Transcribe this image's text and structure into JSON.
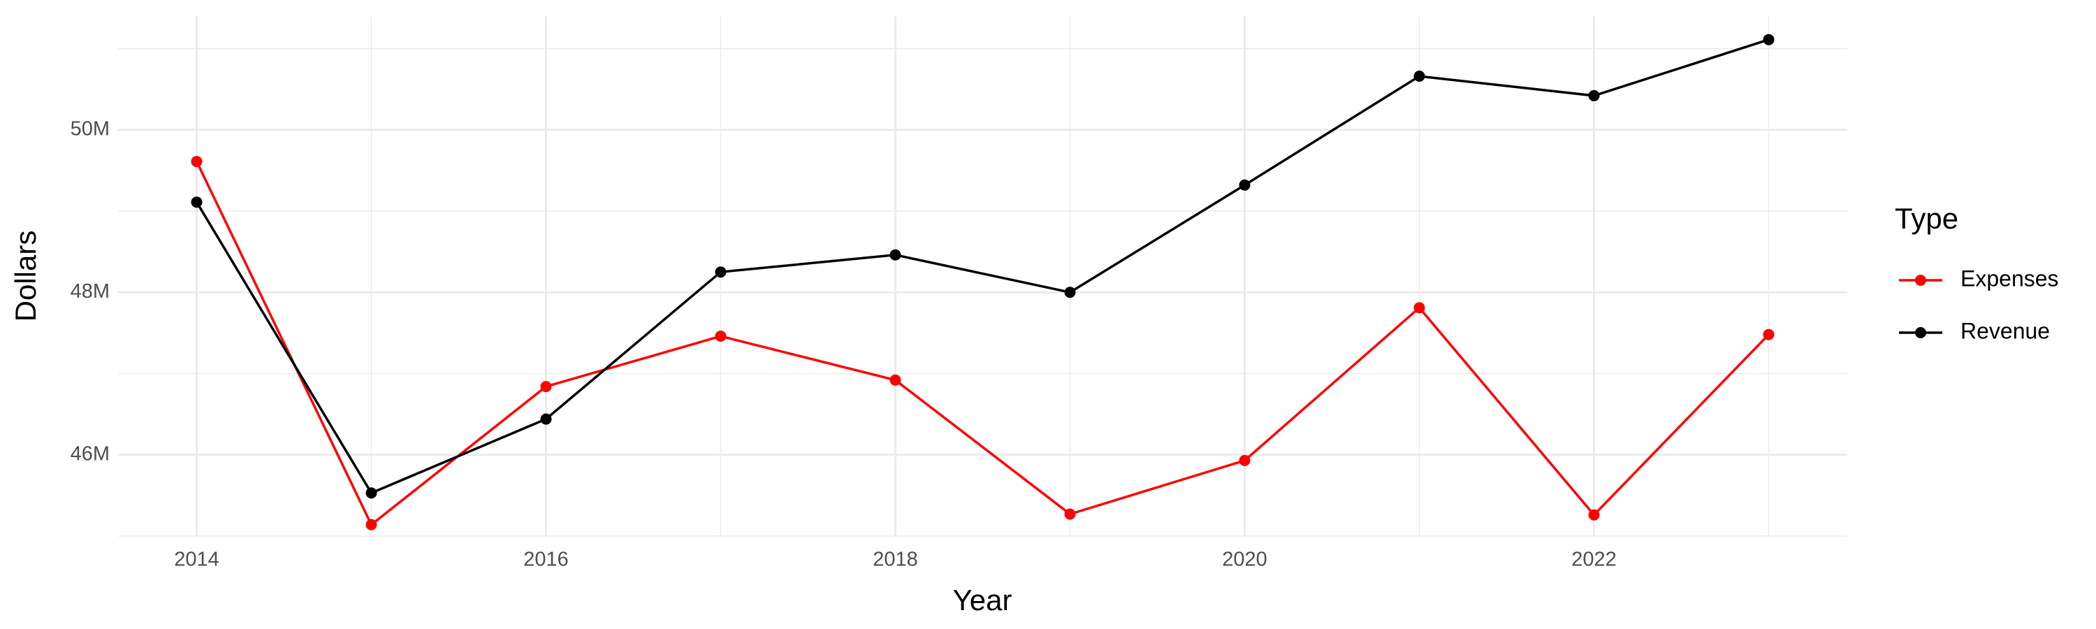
{
  "chart_data": {
    "type": "line",
    "x_label": "Year",
    "y_label": "Dollars",
    "legend_title": "Type",
    "x": [
      2014,
      2015,
      2016,
      2017,
      2018,
      2019,
      2020,
      2021,
      2022,
      2023
    ],
    "series": [
      {
        "name": "Expenses",
        "color": "#ff0000",
        "values": [
          49610000,
          45140000,
          46840000,
          47460000,
          46920000,
          45270000,
          45930000,
          47810000,
          45260000,
          47480000
        ]
      },
      {
        "name": "Revenue",
        "color": "#000000",
        "values": [
          49110000,
          45530000,
          46440000,
          48250000,
          48460000,
          48000000,
          49320000,
          50660000,
          50420000,
          51110000
        ]
      }
    ],
    "xlim": [
      2013.55,
      2023.45
    ],
    "xticks": [
      2014,
      2016,
      2018,
      2020,
      2022
    ],
    "ylim": [
      45000000,
      51400000
    ],
    "yticks": [
      {
        "value": 46000000,
        "label": "46M"
      },
      {
        "value": 48000000,
        "label": "48M"
      },
      {
        "value": 50000000,
        "label": "50M"
      }
    ],
    "grid": true,
    "legend": "right"
  }
}
